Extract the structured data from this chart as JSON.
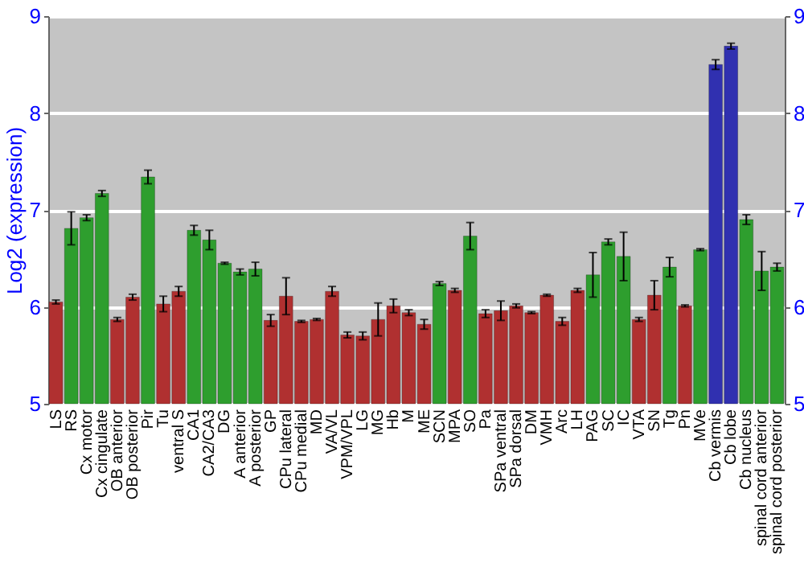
{
  "chart_data": {
    "type": "bar",
    "ylabel": "Log2 (expression)",
    "categories": [
      "LS",
      "RS",
      "Cx motor",
      "Cx cingulate",
      "OB anterior",
      "OB posterior",
      "Pir",
      "Tu",
      "ventral S",
      "CA1",
      "CA2/CA3",
      "DG",
      "A anterior",
      "A posterior",
      "GP",
      "CPu lateral",
      "CPu medial",
      "MD",
      "VA/VL",
      "VPM/VPL",
      "LG",
      "MG",
      "Hb",
      "M",
      "ME",
      "SCN",
      "MPA",
      "SO",
      "Pa",
      "SPa ventral",
      "SPa dorsal",
      "DM",
      "VMH",
      "Arc",
      "LH",
      "PAG",
      "SC",
      "IC",
      "VTA",
      "SN",
      "Tg",
      "Pn",
      "MVe",
      "Cb vermis",
      "Cb lobe",
      "Cb nucleus",
      "spinal cord anterior",
      "spinal cord posterior"
    ],
    "values": [
      6.05,
      6.81,
      6.92,
      7.17,
      5.87,
      6.1,
      7.34,
      6.03,
      6.16,
      6.79,
      6.69,
      6.45,
      6.36,
      6.39,
      5.86,
      6.11,
      5.85,
      5.87,
      6.16,
      5.71,
      5.7,
      5.87,
      6.01,
      5.94,
      5.82,
      6.24,
      6.17,
      6.73,
      5.93,
      5.96,
      6.01,
      5.94,
      6.12,
      5.85,
      6.17,
      6.33,
      6.67,
      6.52,
      5.87,
      6.12,
      6.41,
      6.01,
      6.59,
      8.5,
      8.69,
      6.9,
      6.37,
      6.41
    ],
    "errors": [
      0.02,
      0.17,
      0.03,
      0.03,
      0.02,
      0.03,
      0.07,
      0.08,
      0.05,
      0.05,
      0.1,
      0.01,
      0.03,
      0.07,
      0.06,
      0.19,
      0.01,
      0.01,
      0.05,
      0.03,
      0.04,
      0.17,
      0.07,
      0.03,
      0.05,
      0.02,
      0.02,
      0.14,
      0.04,
      0.1,
      0.02,
      0.01,
      0.01,
      0.04,
      0.02,
      0.23,
      0.03,
      0.25,
      0.02,
      0.15,
      0.1,
      0.01,
      0.01,
      0.05,
      0.03,
      0.05,
      0.2,
      0.04
    ],
    "colors": [
      "#b03030",
      "#2e9e2e",
      "#2e9e2e",
      "#2e9e2e",
      "#b03030",
      "#b03030",
      "#2e9e2e",
      "#b03030",
      "#b03030",
      "#2e9e2e",
      "#2e9e2e",
      "#2e9e2e",
      "#2e9e2e",
      "#2e9e2e",
      "#b03030",
      "#b03030",
      "#b03030",
      "#b03030",
      "#b03030",
      "#b03030",
      "#b03030",
      "#b03030",
      "#b03030",
      "#b03030",
      "#b03030",
      "#2e9e2e",
      "#b03030",
      "#2e9e2e",
      "#b03030",
      "#b03030",
      "#b03030",
      "#b03030",
      "#b03030",
      "#b03030",
      "#b03030",
      "#2e9e2e",
      "#2e9e2e",
      "#2e9e2e",
      "#b03030",
      "#b03030",
      "#2e9e2e",
      "#b03030",
      "#2e9e2e",
      "#3030b0",
      "#3030b0",
      "#2e9e2e",
      "#2e9e2e",
      "#2e9e2e"
    ],
    "ylim": [
      5,
      9
    ],
    "yticks": [
      5,
      6,
      7,
      8,
      9
    ],
    "y2lim": [
      5,
      9
    ],
    "y2ticks": [
      5,
      6,
      7,
      8,
      9
    ],
    "grid": "y"
  }
}
